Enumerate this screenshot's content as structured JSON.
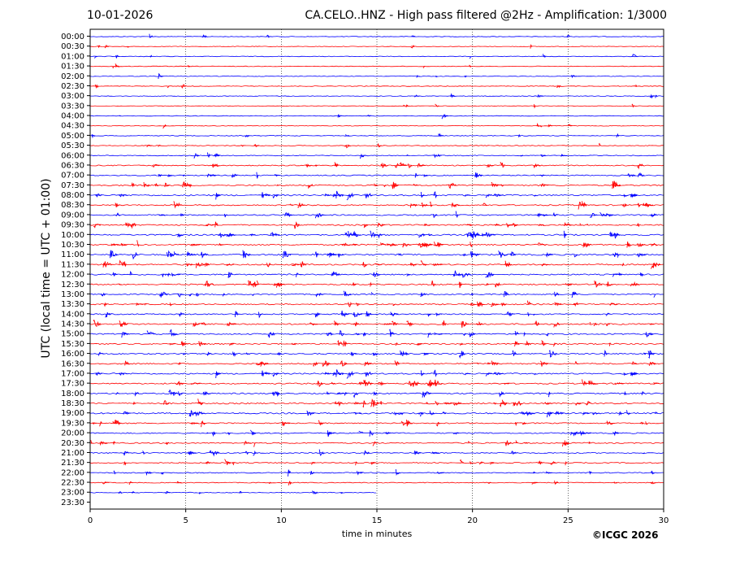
{
  "header": {
    "date": "10-01-2026",
    "title": "CA.CELO..HNZ - High pass filtered @2Hz - Amplification: 1/3000"
  },
  "copyright": "©ICGC 2026",
  "colors": {
    "trace_a": "#ff0000",
    "trace_b": "#0000ff",
    "grid": "#000000"
  },
  "chart_data": {
    "type": "helicorder",
    "xlabel": "time in minutes",
    "ylabel": "UTC (local time = UTC + 01:00)",
    "xlim": [
      0,
      30
    ],
    "x_ticks": [
      0,
      5,
      10,
      15,
      20,
      25,
      30
    ],
    "grid": "vertical dotted at 5-minute intervals",
    "row_labels": [
      "00:00",
      "00:30",
      "01:00",
      "01:30",
      "02:00",
      "02:30",
      "03:00",
      "03:30",
      "04:00",
      "04:30",
      "05:00",
      "05:30",
      "06:00",
      "06:30",
      "07:00",
      "07:30",
      "08:00",
      "08:30",
      "09:00",
      "09:30",
      "10:00",
      "10:30",
      "11:00",
      "11:30",
      "12:00",
      "12:30",
      "13:00",
      "13:30",
      "14:00",
      "14:30",
      "15:00",
      "15:30",
      "16:00",
      "16:30",
      "17:00",
      "17:30",
      "18:00",
      "18:30",
      "19:00",
      "19:30",
      "20:00",
      "20:30",
      "21:00",
      "21:30",
      "22:00",
      "22:30",
      "23:00",
      "23:30"
    ],
    "trace_colors": "alternating blue (first row) and red",
    "traces_recorded_through": "23:00",
    "activity_level": [
      0.1,
      0.1,
      0.15,
      0.1,
      0.1,
      0.1,
      0.1,
      0.1,
      0.1,
      0.1,
      0.15,
      0.2,
      0.3,
      0.5,
      0.5,
      0.7,
      0.8,
      0.6,
      0.6,
      0.7,
      0.8,
      0.8,
      0.9,
      0.8,
      0.7,
      0.7,
      0.6,
      0.6,
      0.6,
      0.8,
      0.7,
      0.7,
      0.7,
      0.7,
      0.8,
      0.7,
      0.7,
      0.8,
      0.8,
      0.6,
      0.6,
      0.6,
      0.5,
      0.5,
      0.4,
      0.3,
      0.2,
      0.0
    ]
  }
}
